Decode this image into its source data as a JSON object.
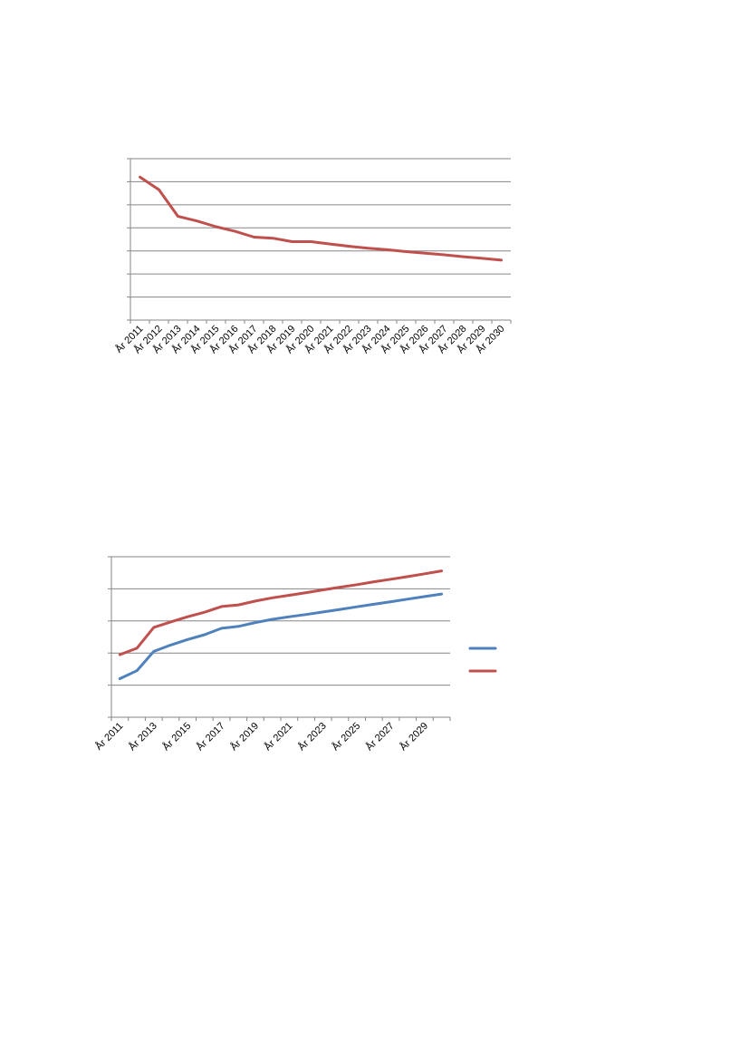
{
  "chart_data": [
    {
      "type": "line",
      "categories": [
        "År 2011",
        "År 2012",
        "År 2013",
        "År 2014",
        "År 2015",
        "År 2016",
        "År 2017",
        "År 2018",
        "År 2019",
        "År 2020",
        "År 2021",
        "År 2022",
        "År 2023",
        "År 2024",
        "År 2025",
        "År 2026",
        "År 2027",
        "År 2028",
        "År 2029",
        "År 2030"
      ],
      "series": [
        {
          "color": "#c0504d",
          "values": [
            6.2,
            5.65,
            4.5,
            4.3,
            4.05,
            3.85,
            3.6,
            3.55,
            3.4,
            3.4,
            3.3,
            3.2,
            3.12,
            3.05,
            2.97,
            2.9,
            2.83,
            2.75,
            2.68,
            2.6
          ]
        }
      ],
      "ylim": [
        0,
        7
      ],
      "grid": true,
      "legend": "none"
    },
    {
      "type": "line",
      "categories": [
        "År 2011",
        "År 2012",
        "År 2013",
        "År 2014",
        "År 2015",
        "År 2016",
        "År 2017",
        "År 2018",
        "År 2019",
        "År 2020",
        "År 2021",
        "År 2022",
        "År 2023",
        "År 2024",
        "År 2025",
        "År 2026",
        "År 2027",
        "År 2028",
        "År 2029",
        "År 2030"
      ],
      "tick_labels": [
        "År 2011",
        "År 2013",
        "År 2015",
        "År 2017",
        "År 2019",
        "År 2021",
        "År 2023",
        "År 2025",
        "År 2027",
        "År 2029"
      ],
      "series": [
        {
          "color": "#4f81bd",
          "values": [
            1.2,
            1.45,
            2.05,
            2.25,
            2.42,
            2.57,
            2.77,
            2.83,
            2.95,
            3.05,
            3.13,
            3.2,
            3.28,
            3.36,
            3.44,
            3.52,
            3.6,
            3.68,
            3.76,
            3.84
          ]
        },
        {
          "color": "#c0504d",
          "values": [
            1.95,
            2.15,
            2.8,
            2.97,
            3.13,
            3.27,
            3.45,
            3.5,
            3.62,
            3.72,
            3.8,
            3.88,
            3.97,
            4.05,
            4.13,
            4.22,
            4.3,
            4.38,
            4.47,
            4.56
          ]
        }
      ],
      "ylim": [
        0,
        5
      ],
      "grid": true,
      "legend": "right"
    }
  ]
}
